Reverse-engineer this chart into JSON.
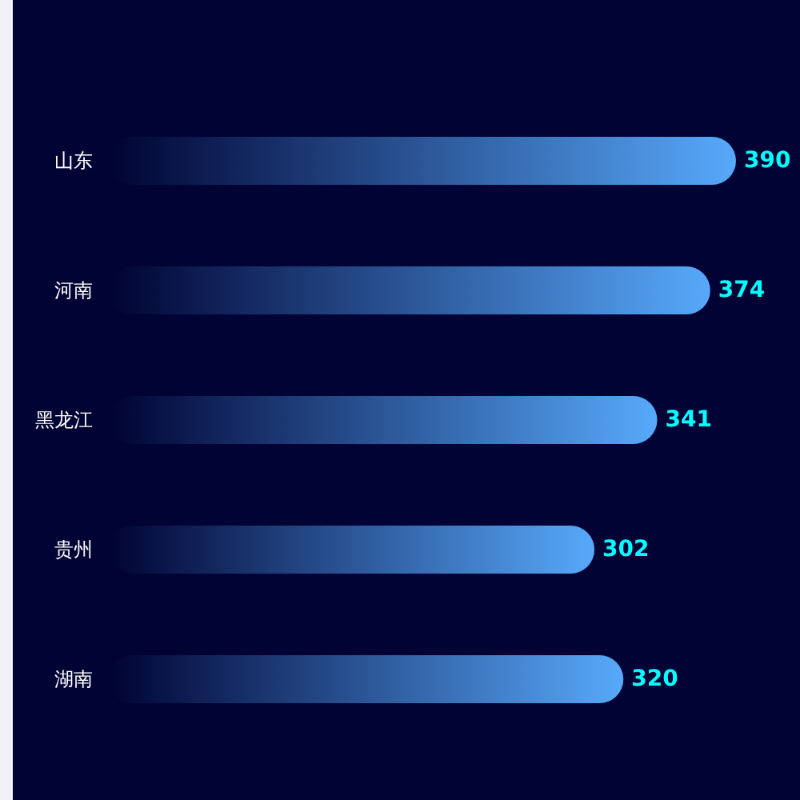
{
  "chart_data": {
    "type": "bar",
    "orientation": "horizontal",
    "categories": [
      "山东",
      "河南",
      "黑龙江",
      "贵州",
      "湖南"
    ],
    "values": [
      390,
      374,
      341,
      302,
      320
    ],
    "color": "#57a9fb",
    "data_labels": true
  }
}
